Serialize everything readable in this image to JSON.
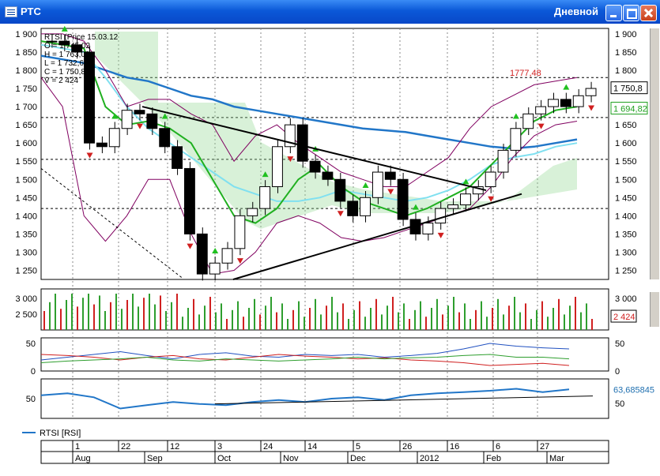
{
  "window": {
    "title": "РТС",
    "timeframe": "Дневной"
  },
  "info_box": {
    "line1": "RTSI (Price 15.03.12",
    "line2": "O = 1 745,02",
    "line3": "H = 1 763,09",
    "line4": "L = 1 732,67",
    "line5": "C = 1 750,8",
    "line6": "V = 2 424"
  },
  "price_markers": {
    "last": "1 750,8",
    "secondary": "1 694,82",
    "high_label": "1777,48"
  },
  "volume_marker": "2 424",
  "rsi_marker": "63,685845",
  "rsi_legend": "RTSI [RSI]",
  "colors": {
    "bg": "#ffffff",
    "up": "#2e9e2e",
    "down": "#d02020",
    "ma_blue": "#2176c8",
    "cloud": "#38b838",
    "grid": "#000000"
  },
  "chart_data": [
    {
      "type": "candlestick",
      "title": "",
      "y_ticks": [
        "1 900",
        "1 850",
        "1 800",
        "1 750",
        "1 700",
        "1 650",
        "1 600",
        "1 550",
        "1 500",
        "1 450",
        "1 400",
        "1 350",
        "1 300",
        "1 250"
      ],
      "ylim": [
        1225,
        1915
      ],
      "x_date_ticks": [
        "1",
        "22",
        "12",
        "3",
        "24",
        "14",
        "5",
        "26",
        "16",
        "6",
        "27"
      ],
      "x_month_ticks": [
        "Aug",
        "Sep",
        "Oct",
        "Nov",
        "Dec",
        "2012",
        "Feb",
        "Mar"
      ],
      "close_estimates": [
        1880,
        1870,
        1850,
        1600,
        1590,
        1640,
        1690,
        1680,
        1640,
        1590,
        1530,
        1350,
        1240,
        1270,
        1310,
        1400,
        1420,
        1480,
        1590,
        1650,
        1550,
        1520,
        1500,
        1440,
        1400,
        1450,
        1520,
        1500,
        1390,
        1350,
        1380,
        1420,
        1430,
        1460,
        1480,
        1520,
        1580,
        1640,
        1680,
        1700,
        1720,
        1700,
        1730,
        1750
      ],
      "annotations": [
        "1777,48"
      ],
      "markers": "up/down fractal arrows"
    },
    {
      "type": "bar",
      "title": "",
      "y_ticks": [
        "3 000",
        "2 500"
      ],
      "last_value": 2424
    },
    {
      "type": "line",
      "title": "",
      "y_ticks": [
        "50",
        "0"
      ],
      "series": [
        {
          "values": [
            20,
            25,
            30,
            35,
            28,
            22,
            30,
            33,
            27,
            25,
            30,
            28,
            30,
            25,
            28,
            32,
            40,
            50,
            45,
            42,
            40
          ]
        },
        {
          "values": [
            30,
            28,
            25,
            20,
            25,
            28,
            22,
            20,
            25,
            30,
            27,
            25,
            22,
            24,
            20,
            18,
            15,
            10,
            12,
            14,
            10
          ]
        },
        {
          "values": [
            15,
            18,
            20,
            22,
            25,
            20,
            18,
            22,
            20,
            18,
            20,
            22,
            25,
            22,
            24,
            25,
            28,
            30,
            25,
            25,
            22
          ]
        }
      ]
    },
    {
      "type": "line",
      "title": "",
      "y_ticks": [
        "50"
      ],
      "series": [
        {
          "name": "RTSI [RSI]",
          "values": [
            55,
            58,
            52,
            35,
            40,
            45,
            42,
            40,
            45,
            48,
            45,
            50,
            52,
            48,
            55,
            58,
            60,
            62,
            65,
            60,
            64
          ]
        }
      ],
      "last_value": 63.685845,
      "x_date_ticks": [
        "1",
        "22",
        "12",
        "3",
        "24",
        "14",
        "5",
        "26",
        "16",
        "6",
        "27"
      ],
      "x_month_ticks": [
        "Aug",
        "Sep",
        "Oct",
        "Nov",
        "Dec",
        "2012",
        "Feb",
        "Mar"
      ]
    }
  ]
}
